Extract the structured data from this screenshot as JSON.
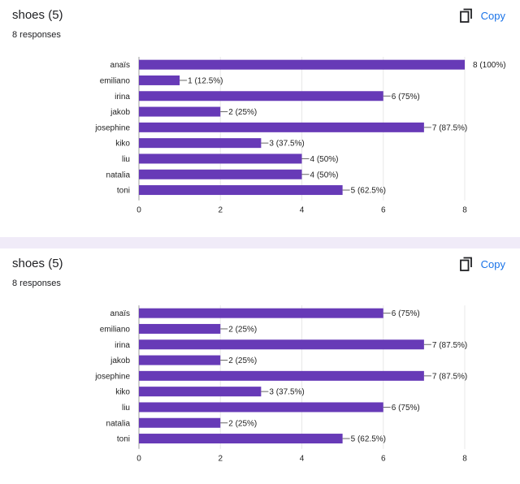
{
  "cards": [
    {
      "title": "shoes (5)",
      "responses": "8 responses",
      "copy_label": "Copy",
      "copy_icon": "copy-icon",
      "chart_data": {
        "type": "bar",
        "orientation": "horizontal",
        "categories": [
          "anaïs",
          "emiliano",
          "irina",
          "jakob",
          "josephine",
          "kiko",
          "liu",
          "natalia",
          "toni"
        ],
        "values": [
          8,
          1,
          6,
          2,
          7,
          3,
          4,
          4,
          5
        ],
        "labels": [
          "8 (100%)",
          "1 (12.5%)",
          "6 (75%)",
          "2 (25%)",
          "7 (87.5%)",
          "3 (37.5%)",
          "4 (50%)",
          "4 (50%)",
          "5 (62.5%)"
        ],
        "xlim": [
          0,
          8
        ],
        "xticks": [
          0,
          2,
          4,
          6,
          8
        ],
        "grid": true,
        "bar_color": "#673ab7"
      }
    },
    {
      "title": "shoes (5)",
      "responses": "8 responses",
      "copy_label": "Copy",
      "copy_icon": "copy-icon",
      "chart_data": {
        "type": "bar",
        "orientation": "horizontal",
        "categories": [
          "anaïs",
          "emiliano",
          "irina",
          "jakob",
          "josephine",
          "kiko",
          "liu",
          "natalia",
          "toni"
        ],
        "values": [
          6,
          2,
          7,
          2,
          7,
          3,
          6,
          2,
          5
        ],
        "labels": [
          "6 (75%)",
          "2 (25%)",
          "7 (87.5%)",
          "2 (25%)",
          "7 (87.5%)",
          "3 (37.5%)",
          "6 (75%)",
          "2 (25%)",
          "5 (62.5%)"
        ],
        "xlim": [
          0,
          8
        ],
        "xticks": [
          0,
          2,
          4,
          6,
          8
        ],
        "grid": true,
        "bar_color": "#673ab7"
      }
    }
  ]
}
